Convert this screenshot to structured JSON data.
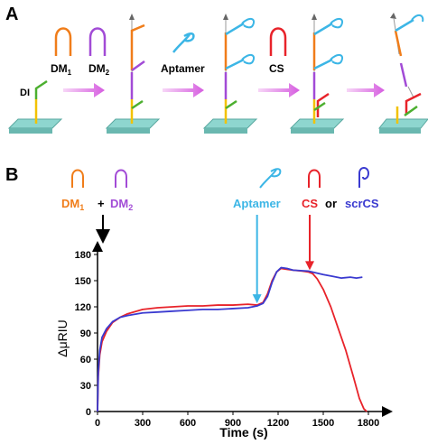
{
  "panel_a": {
    "label": "A",
    "labels": {
      "dm1_main": "DM",
      "dm1_sub": "1",
      "dm2_main": "DM",
      "dm2_sub": "2",
      "di": "DI",
      "aptamer": "Aptamer",
      "cs": "CS"
    }
  },
  "panel_b": {
    "label": "B",
    "labels": {
      "dm1_main": "DM",
      "dm1_sub": "1",
      "plus": "+",
      "dm2_main": "DM",
      "dm2_sub": "2",
      "aptamer": "Aptamer",
      "cs": "CS",
      "or": "or",
      "scrcs": "scrCS"
    }
  },
  "colors": {
    "orange": "#f07d1a",
    "purple": "#a24bd6",
    "cyan": "#3cb6e6",
    "red": "#e8232a",
    "blue": "#3a3ad0",
    "green": "#4caf2f",
    "yellow": "#f2c200",
    "surface": "#8ed6cf",
    "arrow": "#e07fe8"
  },
  "chart_data": {
    "type": "line",
    "xlabel": "Time (s)",
    "ylabel": "ΔμRIU",
    "xlim": [
      0,
      1800
    ],
    "ylim": [
      0,
      180
    ],
    "x_ticks": [
      "0",
      "300",
      "600",
      "900",
      "1200",
      "1500",
      "1800"
    ],
    "y_ticks": [
      "0",
      "30",
      "60",
      "90",
      "120",
      "150",
      "180"
    ],
    "series": [
      {
        "color": "#e8232a",
        "points": [
          [
            0,
            0
          ],
          [
            5,
            40
          ],
          [
            15,
            65
          ],
          [
            30,
            80
          ],
          [
            60,
            92
          ],
          [
            100,
            102
          ],
          [
            150,
            108
          ],
          [
            200,
            112
          ],
          [
            300,
            117
          ],
          [
            400,
            119
          ],
          [
            500,
            120
          ],
          [
            600,
            121
          ],
          [
            700,
            121
          ],
          [
            800,
            122
          ],
          [
            900,
            122
          ],
          [
            1000,
            123
          ],
          [
            1060,
            122
          ],
          [
            1100,
            125
          ],
          [
            1130,
            135
          ],
          [
            1160,
            150
          ],
          [
            1190,
            160
          ],
          [
            1220,
            164
          ],
          [
            1260,
            163
          ],
          [
            1300,
            162
          ],
          [
            1360,
            161
          ],
          [
            1400,
            160
          ],
          [
            1430,
            158
          ],
          [
            1460,
            152
          ],
          [
            1500,
            140
          ],
          [
            1550,
            120
          ],
          [
            1600,
            95
          ],
          [
            1650,
            70
          ],
          [
            1700,
            40
          ],
          [
            1740,
            15
          ],
          [
            1770,
            3
          ],
          [
            1790,
            0
          ]
        ]
      },
      {
        "color": "#3a3ad0",
        "points": [
          [
            0,
            0
          ],
          [
            5,
            45
          ],
          [
            15,
            70
          ],
          [
            30,
            85
          ],
          [
            60,
            95
          ],
          [
            100,
            103
          ],
          [
            150,
            108
          ],
          [
            200,
            110
          ],
          [
            300,
            113
          ],
          [
            400,
            114
          ],
          [
            500,
            115
          ],
          [
            600,
            116
          ],
          [
            700,
            117
          ],
          [
            800,
            117
          ],
          [
            900,
            118
          ],
          [
            1000,
            119
          ],
          [
            1060,
            121
          ],
          [
            1100,
            124
          ],
          [
            1130,
            132
          ],
          [
            1160,
            148
          ],
          [
            1190,
            160
          ],
          [
            1220,
            165
          ],
          [
            1260,
            164
          ],
          [
            1300,
            162
          ],
          [
            1400,
            161
          ],
          [
            1500,
            157
          ],
          [
            1560,
            155
          ],
          [
            1620,
            153
          ],
          [
            1680,
            154
          ],
          [
            1720,
            153
          ],
          [
            1760,
            154
          ]
        ]
      }
    ],
    "annotations": [
      {
        "label": "Aptamer",
        "x": 1060,
        "color": "#3cb6e6"
      },
      {
        "label": "CS",
        "x": 1410,
        "color": "#e8232a"
      }
    ]
  }
}
